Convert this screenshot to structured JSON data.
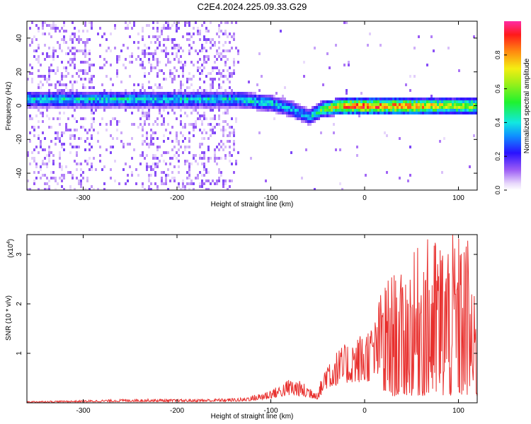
{
  "title": "C2E4.2024.225.09.33.G29",
  "chart_data": [
    {
      "type": "heatmap",
      "xlabel": "Height of straight line (km)",
      "ylabel": "Frequency (Hz)",
      "xlim": [
        -360,
        120
      ],
      "ylim": [
        -50,
        50
      ],
      "xticks": [
        -300,
        -200,
        -100,
        0,
        100
      ],
      "yticks": [
        -40,
        -20,
        0,
        20,
        40
      ],
      "grid": false,
      "ridge": {
        "description_points_x": [
          -360,
          -135,
          -100,
          -80,
          -60,
          -45,
          -30,
          -20,
          0,
          50,
          120
        ],
        "frequency_hz": [
          4.5,
          4.5,
          2,
          -1,
          -6,
          -1,
          0,
          0.5,
          0.5,
          0.5,
          0.5
        ],
        "peak_amplitude": [
          0.45,
          0.45,
          0.45,
          0.42,
          0.4,
          0.65,
          0.85,
          0.95,
          0.97,
          0.9,
          0.7
        ]
      },
      "colorbar": {
        "label": "Normalized spectral amplitude",
        "range": [
          0,
          1
        ],
        "ticks": [
          0.0,
          0.2,
          0.4,
          0.6,
          0.8
        ]
      }
    },
    {
      "type": "line",
      "xlabel": "Height of straight line (km)",
      "ylabel": "SNR (10 * v/v)",
      "multiplier": "(x10",
      "multiplier_exp": "4",
      "xlim": [
        -360,
        120
      ],
      "ylim": [
        0,
        3.4
      ],
      "xticks": [
        -300,
        -200,
        -100,
        0,
        100
      ],
      "yticks": [
        1,
        2,
        3
      ],
      "series": [
        {
          "color": "#e8302e",
          "envelope_x": [
            -360,
            -300,
            -240,
            -200,
            -160,
            -130,
            -110,
            -90,
            -80,
            -70,
            -60,
            -50,
            -40,
            -30,
            -20,
            -10,
            0,
            10,
            20,
            30,
            40,
            60,
            80,
            100,
            110,
            120
          ],
          "baseline": [
            0.02,
            0.03,
            0.05,
            0.04,
            0.05,
            0.06,
            0.12,
            0.25,
            0.3,
            0.28,
            0.2,
            0.15,
            0.6,
            0.7,
            0.8,
            0.85,
            0.8,
            1.0,
            1.2,
            1.3,
            1.5,
            1.4,
            1.3,
            1.35,
            1.4,
            1.1
          ],
          "peak": [
            0.03,
            0.05,
            0.08,
            0.07,
            0.08,
            0.1,
            0.2,
            0.35,
            0.5,
            0.45,
            0.35,
            0.25,
            0.9,
            1.05,
            1.2,
            1.3,
            1.5,
            1.6,
            2.5,
            2.65,
            2.6,
            3.3,
            3.4,
            3.4,
            3.4,
            1.6
          ]
        }
      ]
    }
  ]
}
